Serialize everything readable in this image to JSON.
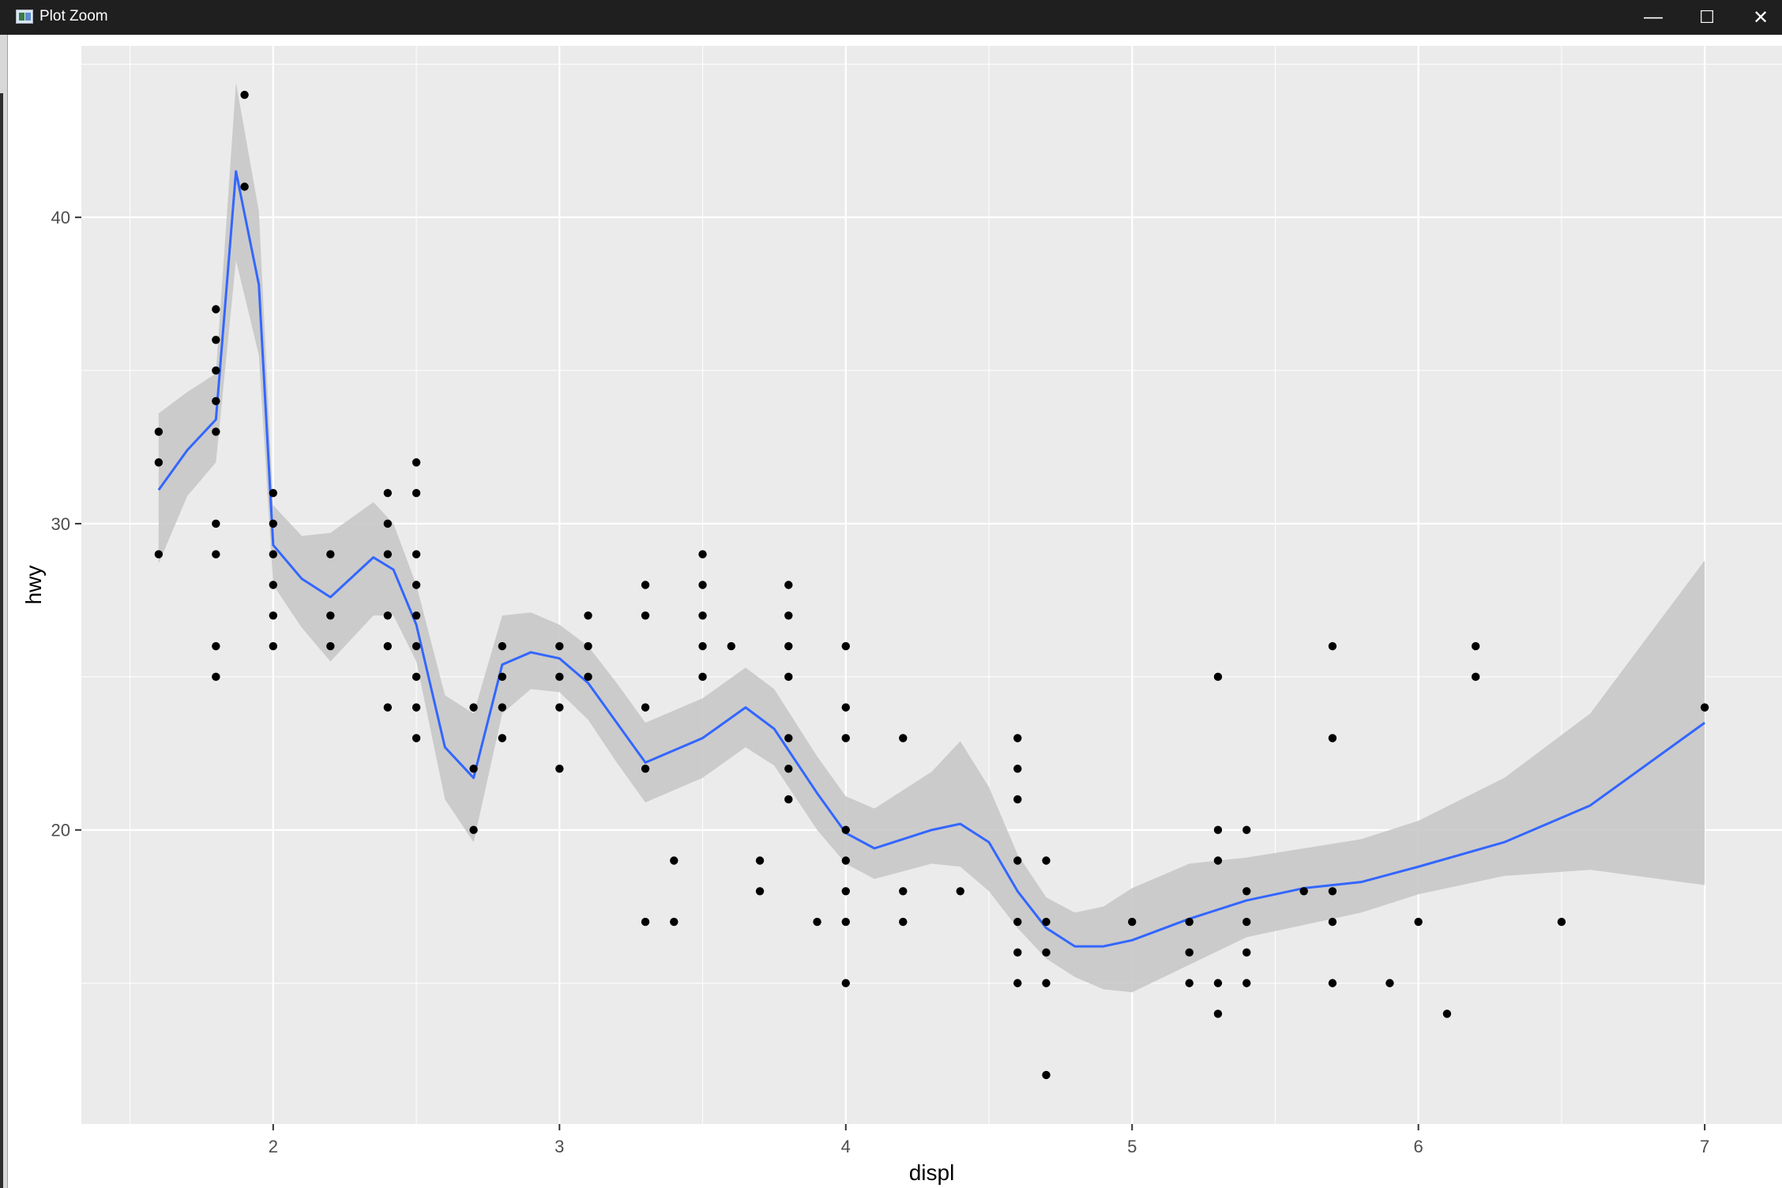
{
  "window": {
    "title": "Plot Zoom",
    "icon": "plot-zoom-app-icon",
    "buttons": {
      "minimize": "—",
      "maximize": "☐",
      "close": "✕"
    }
  },
  "chart_data": {
    "type": "scatter",
    "title": "",
    "xlabel": "displ",
    "ylabel": "hwy",
    "xlim": [
      1.33,
      7.27
    ],
    "ylim": [
      10.4,
      45.6
    ],
    "xticks": [
      2,
      3,
      4,
      5,
      6,
      7
    ],
    "yticks": [
      20,
      30,
      40
    ],
    "x_tick_labels": [
      "2",
      "3",
      "4",
      "5",
      "6",
      "7"
    ],
    "y_tick_labels": [
      "20",
      "30",
      "40"
    ],
    "grid": true,
    "theme": "ggplot2 grey",
    "colors": {
      "panel": "#ebebeb",
      "grid": "#ffffff",
      "points": "#000000",
      "smooth_line": "#3366ff",
      "ribbon": "#c8c8c8"
    },
    "points": [
      [
        1.6,
        33
      ],
      [
        1.6,
        32
      ],
      [
        1.6,
        29
      ],
      [
        1.8,
        37
      ],
      [
        1.8,
        36
      ],
      [
        1.8,
        35
      ],
      [
        1.8,
        34
      ],
      [
        1.8,
        33
      ],
      [
        1.8,
        30
      ],
      [
        1.8,
        29
      ],
      [
        1.8,
        26
      ],
      [
        1.8,
        25
      ],
      [
        1.9,
        44
      ],
      [
        1.9,
        41
      ],
      [
        2.0,
        31
      ],
      [
        2.0,
        30
      ],
      [
        2.0,
        29
      ],
      [
        2.0,
        28
      ],
      [
        2.0,
        27
      ],
      [
        2.0,
        26
      ],
      [
        2.2,
        29
      ],
      [
        2.2,
        27
      ],
      [
        2.2,
        26
      ],
      [
        2.4,
        31
      ],
      [
        2.4,
        30
      ],
      [
        2.4,
        29
      ],
      [
        2.4,
        27
      ],
      [
        2.4,
        26
      ],
      [
        2.4,
        24
      ],
      [
        2.5,
        32
      ],
      [
        2.5,
        31
      ],
      [
        2.5,
        29
      ],
      [
        2.5,
        28
      ],
      [
        2.5,
        27
      ],
      [
        2.5,
        26
      ],
      [
        2.5,
        25
      ],
      [
        2.5,
        24
      ],
      [
        2.5,
        23
      ],
      [
        2.7,
        24
      ],
      [
        2.7,
        22
      ],
      [
        2.7,
        20
      ],
      [
        2.8,
        26
      ],
      [
        2.8,
        25
      ],
      [
        2.8,
        24
      ],
      [
        2.8,
        23
      ],
      [
        3.0,
        26
      ],
      [
        3.0,
        25
      ],
      [
        3.0,
        24
      ],
      [
        3.0,
        22
      ],
      [
        3.1,
        27
      ],
      [
        3.1,
        26
      ],
      [
        3.1,
        25
      ],
      [
        3.3,
        28
      ],
      [
        3.3,
        27
      ],
      [
        3.3,
        24
      ],
      [
        3.3,
        22
      ],
      [
        3.3,
        17
      ],
      [
        3.4,
        19
      ],
      [
        3.4,
        17
      ],
      [
        3.5,
        29
      ],
      [
        3.5,
        28
      ],
      [
        3.5,
        27
      ],
      [
        3.5,
        26
      ],
      [
        3.5,
        25
      ],
      [
        3.6,
        26
      ],
      [
        3.7,
        19
      ],
      [
        3.7,
        18
      ],
      [
        3.8,
        28
      ],
      [
        3.8,
        27
      ],
      [
        3.8,
        26
      ],
      [
        3.8,
        25
      ],
      [
        3.8,
        23
      ],
      [
        3.8,
        22
      ],
      [
        3.8,
        21
      ],
      [
        3.9,
        17
      ],
      [
        4.0,
        26
      ],
      [
        4.0,
        24
      ],
      [
        4.0,
        23
      ],
      [
        4.0,
        20
      ],
      [
        4.0,
        19
      ],
      [
        4.0,
        18
      ],
      [
        4.0,
        17
      ],
      [
        4.0,
        15
      ],
      [
        4.2,
        23
      ],
      [
        4.2,
        18
      ],
      [
        4.2,
        17
      ],
      [
        4.4,
        18
      ],
      [
        4.6,
        23
      ],
      [
        4.6,
        22
      ],
      [
        4.6,
        21
      ],
      [
        4.6,
        19
      ],
      [
        4.6,
        17
      ],
      [
        4.6,
        16
      ],
      [
        4.6,
        15
      ],
      [
        4.7,
        19
      ],
      [
        4.7,
        17
      ],
      [
        4.7,
        16
      ],
      [
        4.7,
        15
      ],
      [
        4.7,
        12
      ],
      [
        5.0,
        17
      ],
      [
        5.2,
        17
      ],
      [
        5.2,
        16
      ],
      [
        5.2,
        15
      ],
      [
        5.3,
        25
      ],
      [
        5.3,
        20
      ],
      [
        5.3,
        19
      ],
      [
        5.3,
        15
      ],
      [
        5.3,
        14
      ],
      [
        5.4,
        20
      ],
      [
        5.4,
        18
      ],
      [
        5.4,
        17
      ],
      [
        5.4,
        16
      ],
      [
        5.4,
        15
      ],
      [
        5.6,
        18
      ],
      [
        5.7,
        26
      ],
      [
        5.7,
        23
      ],
      [
        5.7,
        18
      ],
      [
        5.7,
        17
      ],
      [
        5.7,
        15
      ],
      [
        5.9,
        15
      ],
      [
        6.0,
        17
      ],
      [
        6.1,
        14
      ],
      [
        6.2,
        26
      ],
      [
        6.2,
        25
      ],
      [
        6.5,
        17
      ],
      [
        7.0,
        24
      ]
    ],
    "smooth": {
      "method": "loess",
      "x": [
        1.6,
        1.7,
        1.8,
        1.87,
        1.95,
        2.0,
        2.1,
        2.2,
        2.35,
        2.42,
        2.5,
        2.6,
        2.7,
        2.8,
        2.9,
        3.0,
        3.1,
        3.2,
        3.3,
        3.5,
        3.65,
        3.75,
        3.9,
        4.0,
        4.1,
        4.3,
        4.4,
        4.5,
        4.6,
        4.7,
        4.8,
        4.9,
        5.0,
        5.2,
        5.4,
        5.6,
        5.8,
        6.0,
        6.3,
        6.6,
        7.0
      ],
      "y": [
        31.1,
        32.4,
        33.4,
        41.5,
        37.8,
        29.3,
        28.2,
        27.6,
        28.9,
        28.5,
        26.7,
        22.7,
        21.7,
        25.4,
        25.8,
        25.6,
        24.8,
        23.5,
        22.2,
        23.0,
        24.0,
        23.3,
        21.2,
        19.9,
        19.4,
        20.0,
        20.2,
        19.6,
        18.0,
        16.8,
        16.2,
        16.2,
        16.4,
        17.1,
        17.7,
        18.1,
        18.3,
        18.8,
        19.6,
        20.8,
        23.5
      ],
      "lower": [
        28.7,
        30.9,
        32.0,
        38.6,
        35.5,
        28.0,
        26.6,
        25.5,
        27.0,
        27.0,
        25.5,
        21.0,
        19.6,
        23.8,
        24.6,
        24.5,
        23.6,
        22.2,
        20.9,
        21.7,
        22.7,
        22.1,
        20.0,
        18.9,
        18.4,
        18.9,
        18.8,
        18.0,
        16.8,
        15.8,
        15.2,
        14.8,
        14.7,
        15.6,
        16.5,
        16.9,
        17.3,
        17.9,
        18.5,
        18.7,
        18.2
      ],
      "upper": [
        33.6,
        34.3,
        34.9,
        44.4,
        40.2,
        30.6,
        29.6,
        29.7,
        30.7,
        30.0,
        28.0,
        24.4,
        23.8,
        27.0,
        27.1,
        26.7,
        26.0,
        24.8,
        23.5,
        24.3,
        25.3,
        24.6,
        22.4,
        21.1,
        20.7,
        21.9,
        22.9,
        21.4,
        19.2,
        17.8,
        17.3,
        17.5,
        18.1,
        18.9,
        19.1,
        19.4,
        19.7,
        20.3,
        21.7,
        23.8,
        28.8
      ]
    }
  }
}
